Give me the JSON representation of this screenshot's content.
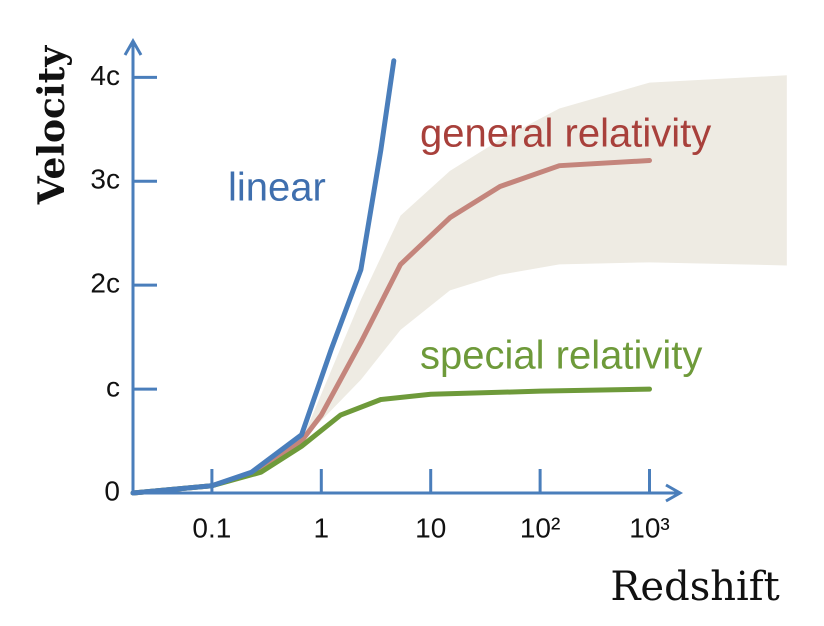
{
  "chart_data": {
    "type": "line",
    "x_label": "Redshift",
    "y_label": "Velocity",
    "xscale": "log",
    "xlim": [
      0.019,
      1900
    ],
    "ylim": [
      0,
      4.35
    ],
    "xticks": [
      0.1,
      1,
      10,
      {
        "value": 100,
        "label": "10²"
      },
      {
        "value": 1000,
        "label": "10³"
      }
    ],
    "yticks": [
      0,
      {
        "value": 1,
        "label": "c"
      },
      {
        "value": 2,
        "label": "2c"
      },
      {
        "value": 3,
        "label": "3c"
      },
      {
        "value": 4,
        "label": "4c"
      }
    ],
    "axis_color": "#4a7ebb",
    "series": [
      {
        "name": "linear",
        "color": "#4a7ebb",
        "label_color": "#3f6fae",
        "x": [
          0.019,
          0.1,
          0.23,
          0.66,
          1.23,
          2.3,
          3.5,
          4.6
        ],
        "values": [
          0,
          0.07,
          0.2,
          0.56,
          1.38,
          2.15,
          3.3,
          4.16
        ]
      },
      {
        "name": "general relativity",
        "color": "#c4857c",
        "label_color": "#a8403b",
        "x": [
          0.019,
          0.1,
          0.28,
          0.66,
          1,
          2.3,
          5.3,
          15,
          43,
          150,
          1000
        ],
        "values": [
          0,
          0.07,
          0.22,
          0.5,
          0.75,
          1.45,
          2.2,
          2.65,
          2.95,
          3.15,
          3.2
        ]
      },
      {
        "name": "special relativity",
        "color": "#6e9a3a",
        "label_color": "#6e9a3a",
        "x": [
          0.019,
          0.1,
          0.28,
          0.66,
          1.5,
          3.5,
          10,
          100,
          1000
        ],
        "values": [
          0,
          0.07,
          0.2,
          0.45,
          0.75,
          0.9,
          0.95,
          0.98,
          1.0
        ]
      }
    ],
    "band": {
      "color": "#eeebe3",
      "x": [
        0.66,
        2.3,
        5.3,
        15,
        43,
        150,
        1000,
        18000
      ],
      "upper": [
        0.5,
        1.86,
        2.67,
        3.1,
        3.4,
        3.7,
        3.95,
        4.02
      ],
      "lower": [
        0.5,
        1.09,
        1.57,
        1.95,
        2.1,
        2.2,
        2.22,
        2.19
      ]
    }
  }
}
